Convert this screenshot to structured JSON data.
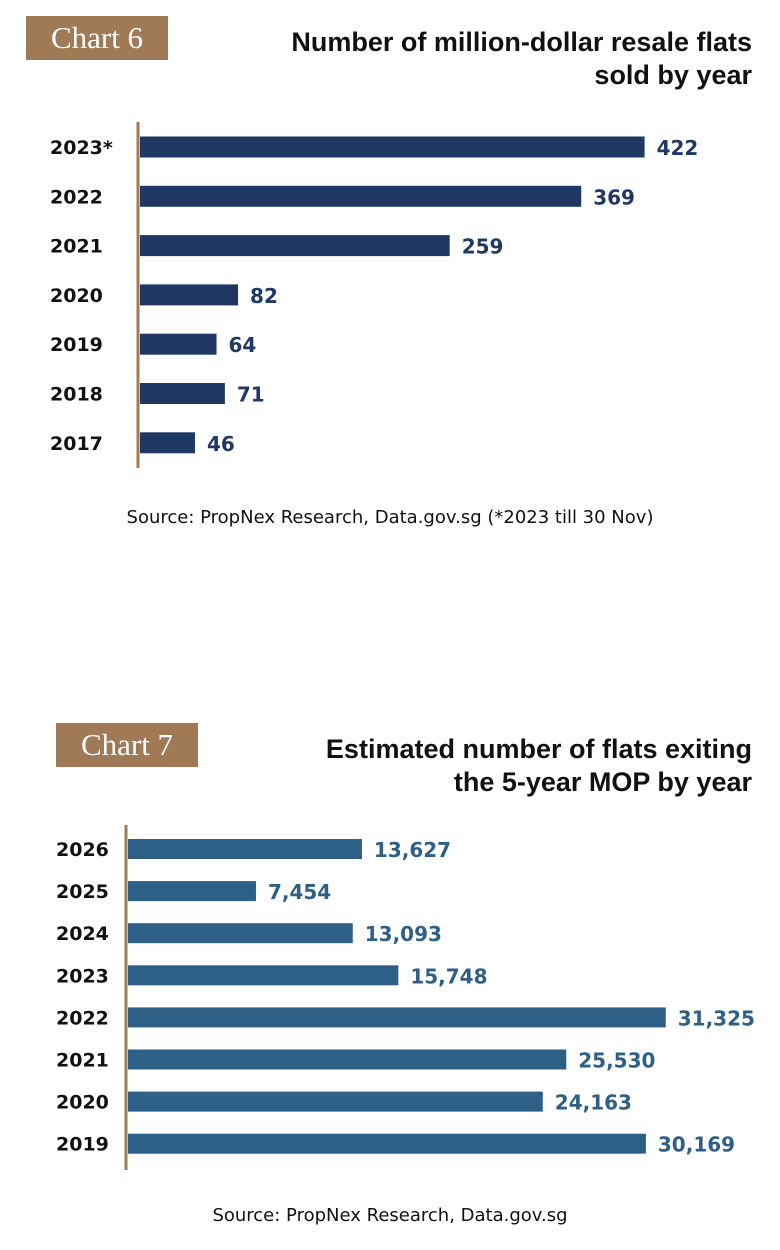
{
  "colors": {
    "tag_bg": "#a07a57",
    "axis": "#a07a57",
    "chart6_bar": "#1f3864",
    "chart7_bar": "#2e5f86"
  },
  "chart6": {
    "tag": "Chart 6",
    "title_line1": "Number of million-dollar resale flats",
    "title_line2": "sold by year",
    "source": "Source: PropNex Research, Data.gov.sg (*2023 till 30 Nov)"
  },
  "chart7": {
    "tag": "Chart 7",
    "title_line1": "Estimated number of flats exiting",
    "title_line2": "the 5-year MOP by year",
    "source": "Source: PropNex Research, Data.gov.sg"
  },
  "chart_data": [
    {
      "type": "bar",
      "orientation": "horizontal",
      "title": "Number of million-dollar resale flats sold by year",
      "categories": [
        "2023*",
        "2022",
        "2021",
        "2020",
        "2019",
        "2018",
        "2017"
      ],
      "values": [
        422,
        369,
        259,
        82,
        64,
        71,
        46
      ],
      "value_labels": [
        "422",
        "369",
        "259",
        "82",
        "64",
        "71",
        "46"
      ],
      "xlim": [
        0,
        470
      ],
      "grid": false,
      "legend": "none"
    },
    {
      "type": "bar",
      "orientation": "horizontal",
      "title": "Estimated number of flats exiting the 5-year MOP by year",
      "categories": [
        "2026",
        "2025",
        "2024",
        "2023",
        "2022",
        "2021",
        "2020",
        "2019"
      ],
      "values": [
        13627,
        7454,
        13093,
        15748,
        31325,
        25530,
        24163,
        30169
      ],
      "value_labels": [
        "13,627",
        "7,454",
        "13,093",
        "15,748",
        "31,325",
        "25,530",
        "24,163",
        "30,169"
      ],
      "xlim": [
        0,
        36000
      ],
      "grid": false,
      "legend": "none"
    }
  ]
}
